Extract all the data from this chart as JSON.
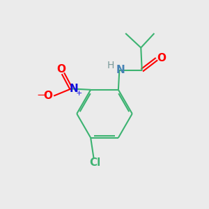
{
  "background_color": "#ebebeb",
  "bond_color": "#3cb371",
  "bond_width": 1.5,
  "atom_colors": {
    "N_amide": "#4682b4",
    "N_nitro": "#1010dd",
    "O": "#ff0000",
    "Cl": "#3cb371",
    "H": "#7a9a9a"
  },
  "font_size_atom": 11,
  "font_size_h": 10,
  "font_size_plus": 8,
  "font_size_cl": 11
}
